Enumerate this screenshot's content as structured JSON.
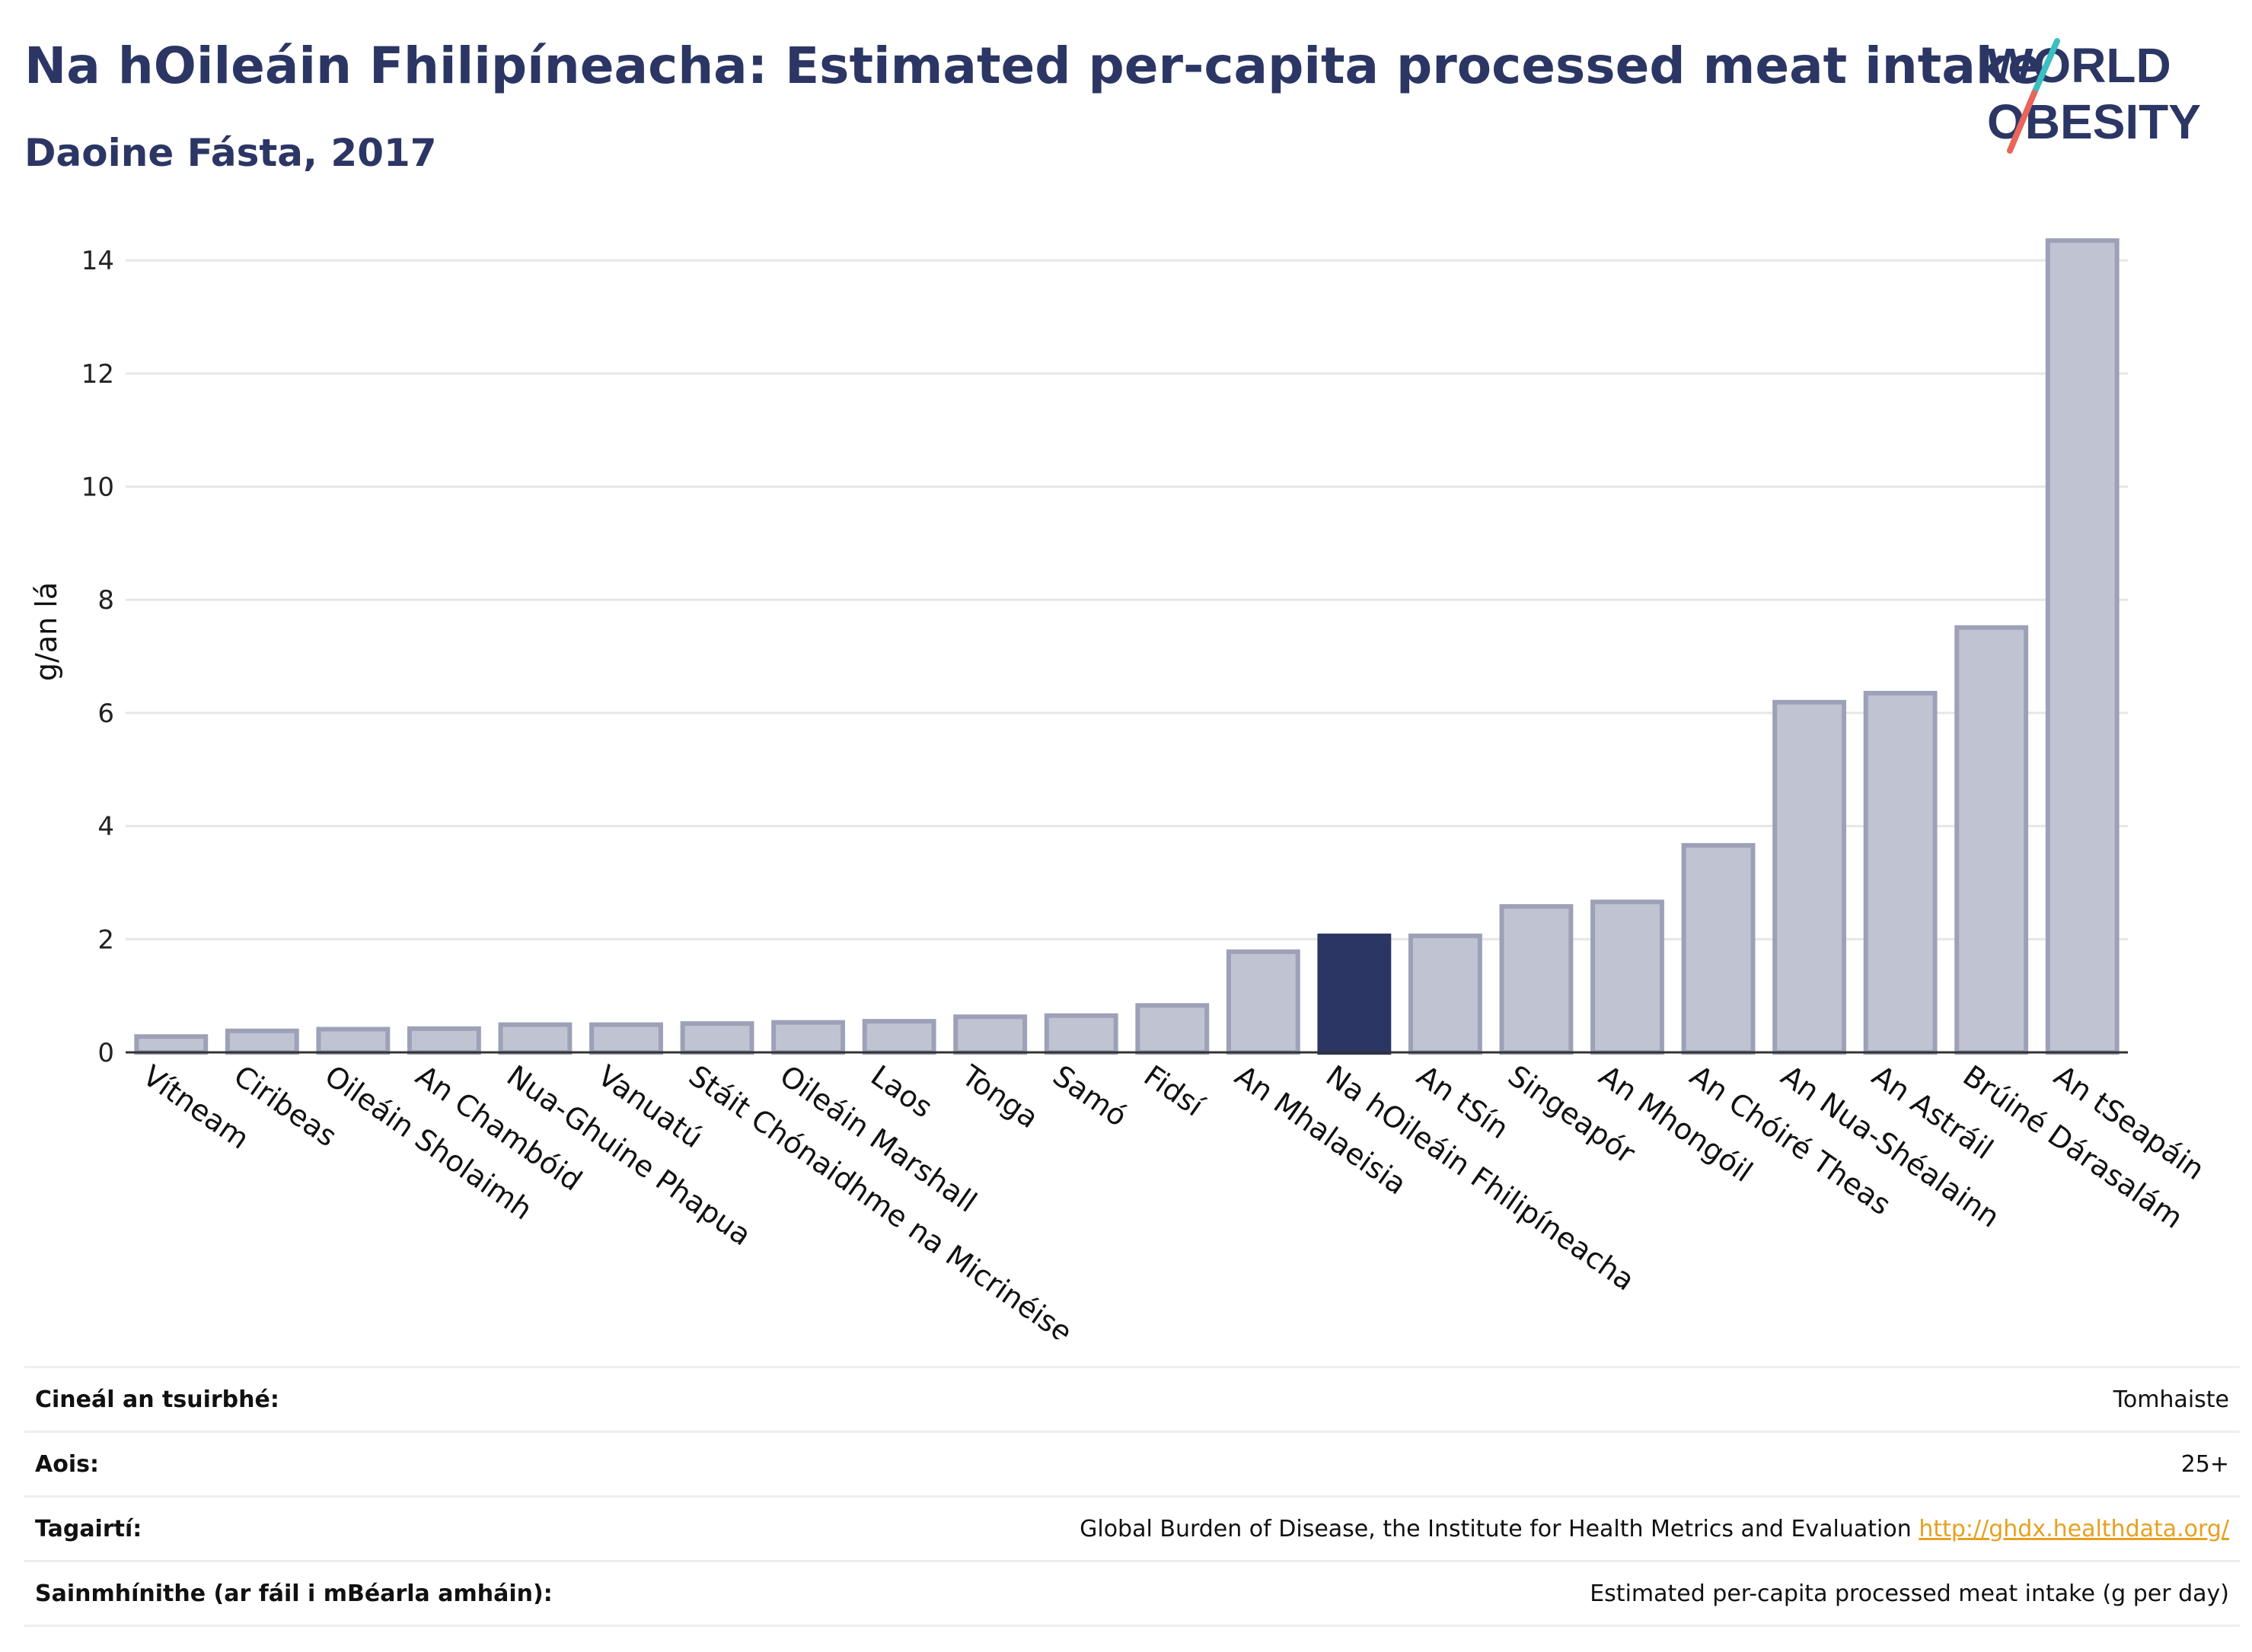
{
  "header": {
    "title": "Na hOileáin Fhilipíneacha: Estimated per-capita processed meat intake",
    "subtitle": "Daoine Fásta, 2017"
  },
  "logo": {
    "line1": "WORLD",
    "line2": "OBESITY",
    "colors": {
      "text": "#2b3664",
      "teal": "#3bbfc1",
      "coral": "#e8665a"
    }
  },
  "chart_data": {
    "type": "bar",
    "ylabel": "g/an lá",
    "ylim": [
      0,
      14.5
    ],
    "yticks": [
      0,
      2,
      4,
      6,
      8,
      10,
      12,
      14
    ],
    "grid": true,
    "categories": [
      "Vítneam",
      "Ciribeas",
      "Oileáin Sholaimh",
      "An Chambóid",
      "Nua-Ghuine Phapua",
      "Vanuatú",
      "Stáit Chónaidhme na Micrinéise",
      "Oileáin Marshall",
      "Laos",
      "Tonga",
      "Samó",
      "Fidsí",
      "An Mhalaeisia",
      "Na hOileáin Fhilipíneacha",
      "An tSín",
      "Singeapór",
      "An Mhongóil",
      "An Chóiré Theas",
      "An Nua-Shéalainn",
      "An Astráil",
      "Brúiné Dárasalám",
      "An tSeapáin"
    ],
    "values": [
      0.28,
      0.38,
      0.41,
      0.42,
      0.49,
      0.49,
      0.51,
      0.53,
      0.55,
      0.63,
      0.65,
      0.83,
      1.78,
      2.06,
      2.06,
      2.58,
      2.66,
      3.66,
      6.19,
      6.35,
      7.51,
      14.35
    ],
    "highlight": "Na hOileáin Fhilipíneacha",
    "colors": {
      "bar": "#c0c3d1",
      "bar_border": "#9ca1b8",
      "highlight": "#2b3664"
    }
  },
  "info_table": [
    {
      "label": "Cineál an tsuirbhé:",
      "value": "Tomhaiste"
    },
    {
      "label": "Aois:",
      "value": "25+"
    },
    {
      "label": "Tagairtí:",
      "value": "Global Burden of Disease, the Institute for Health Metrics and Evaluation",
      "link": "http://ghdx.healthdata.org/"
    },
    {
      "label": "Sainmhínithe (ar fáil i mBéarla amháin):",
      "value": "Estimated per-capita processed meat intake (g per day)"
    }
  ]
}
